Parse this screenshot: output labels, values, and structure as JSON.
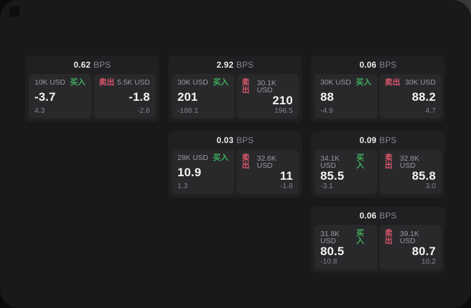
{
  "colors": {
    "buy-accent": "#3fae5d",
    "sell-accent": "#d8566b",
    "window-bg": "#19191b",
    "card-bg": "#202023",
    "panel-bg": "#29292c"
  },
  "icons": {
    "logo": "app-logo"
  },
  "cards": [
    {
      "bps_value": "0.62",
      "bps_unit": "BPS",
      "buy": {
        "amount": "10K USD",
        "side_label": "买入",
        "price": "-3.7",
        "delta": "4.3"
      },
      "sell": {
        "amount": "5.5K USD",
        "side_label": "卖出",
        "price": "-1.8",
        "delta": "-2.6"
      }
    },
    {
      "bps_value": "2.92",
      "bps_unit": "BPS",
      "buy": {
        "amount": "30K USD",
        "side_label": "买入",
        "price": "201",
        "delta": "-188.1"
      },
      "sell": {
        "amount": "30.1K USD",
        "side_label": "卖出",
        "price": "210",
        "delta": "196.5"
      }
    },
    {
      "bps_value": "0.06",
      "bps_unit": "BPS",
      "buy": {
        "amount": "30K USD",
        "side_label": "买入",
        "price": "88",
        "delta": "-4.9"
      },
      "sell": {
        "amount": "30K USD",
        "side_label": "卖出",
        "price": "88.2",
        "delta": "4.7"
      }
    },
    {
      "bps_value": "0.03",
      "bps_unit": "BPS",
      "buy": {
        "amount": "28K USD",
        "side_label": "买入",
        "price": "10.9",
        "delta": "1.3"
      },
      "sell": {
        "amount": "32.6K USD",
        "side_label": "卖出",
        "price": "11",
        "delta": "-1.8"
      }
    },
    {
      "bps_value": "0.09",
      "bps_unit": "BPS",
      "buy": {
        "amount": "34.1K USD",
        "side_label": "买入",
        "price": "85.5",
        "delta": "-3.1"
      },
      "sell": {
        "amount": "32.8K USD",
        "side_label": "卖出",
        "price": "85.8",
        "delta": "3.0"
      }
    },
    {
      "bps_value": "0.06",
      "bps_unit": "BPS",
      "buy": {
        "amount": "31.8K USD",
        "side_label": "买入",
        "price": "80.5",
        "delta": "-10.8"
      },
      "sell": {
        "amount": "39.1K USD",
        "side_label": "卖出",
        "price": "80.7",
        "delta": "10.2"
      }
    }
  ]
}
